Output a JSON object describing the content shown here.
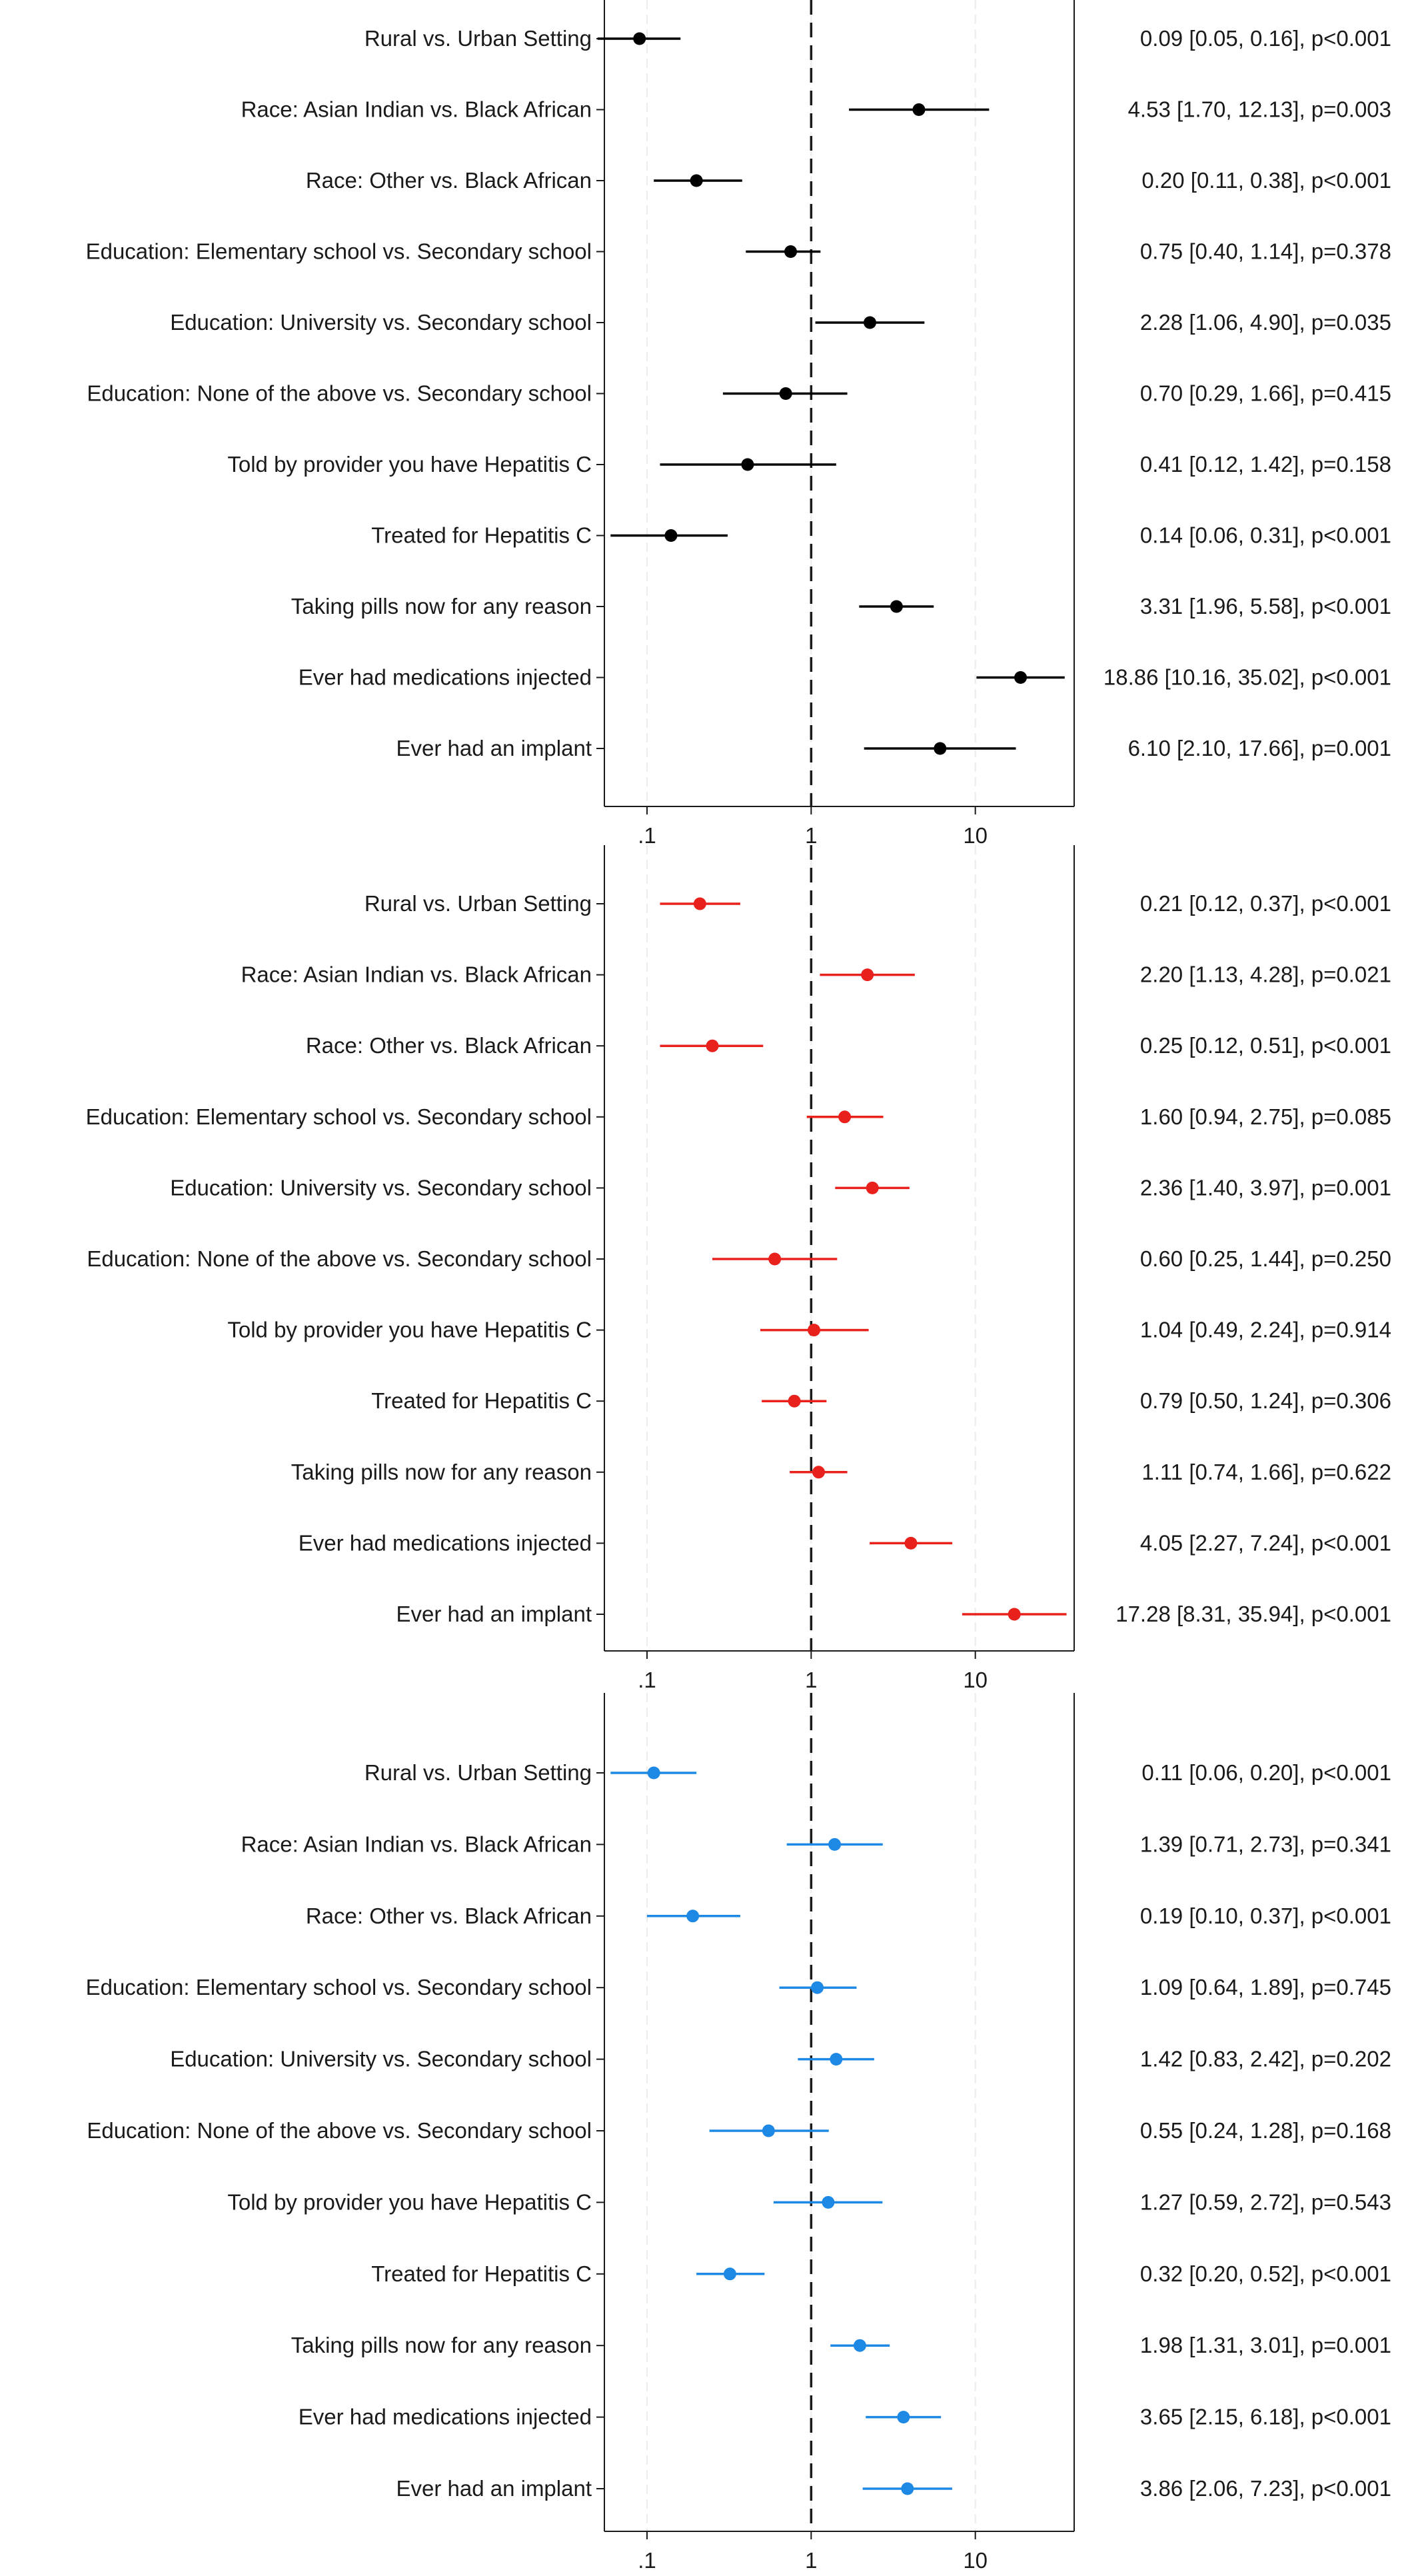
{
  "chart_data": [
    {
      "type": "forest",
      "x_scale": "log",
      "xlim": [
        0.055,
        40
      ],
      "reference_line": 1,
      "x_ticks": [
        {
          "value": 0.1,
          "label": ".1"
        },
        {
          "value": 1,
          "label": "1"
        },
        {
          "value": 10,
          "label": "10"
        }
      ],
      "grid": true,
      "marker_color": "#000000",
      "rows": [
        {
          "label": "Rural vs. Urban Setting",
          "or": 0.09,
          "lo": 0.05,
          "hi": 0.16,
          "text": "0.09 [0.05, 0.16], p<0.001"
        },
        {
          "label": "Race: Asian Indian vs. Black African",
          "or": 4.53,
          "lo": 1.7,
          "hi": 12.13,
          "text": "4.53 [1.70, 12.13], p=0.003"
        },
        {
          "label": "Race: Other vs. Black African",
          "or": 0.2,
          "lo": 0.11,
          "hi": 0.38,
          "text": "0.20 [0.11, 0.38], p<0.001"
        },
        {
          "label": "Education: Elementary school vs. Secondary school",
          "or": 0.75,
          "lo": 0.4,
          "hi": 1.14,
          "text": "0.75 [0.40, 1.14], p=0.378"
        },
        {
          "label": "Education: University vs. Secondary school",
          "or": 2.28,
          "lo": 1.06,
          "hi": 4.9,
          "text": "2.28 [1.06, 4.90], p=0.035"
        },
        {
          "label": "Education: None of the above vs. Secondary school",
          "or": 0.7,
          "lo": 0.29,
          "hi": 1.66,
          "text": "0.70 [0.29, 1.66], p=0.415"
        },
        {
          "label": "Told by provider you have Hepatitis C",
          "or": 0.41,
          "lo": 0.12,
          "hi": 1.42,
          "text": "0.41 [0.12, 1.42], p=0.158"
        },
        {
          "label": "Treated for Hepatitis C",
          "or": 0.14,
          "lo": 0.06,
          "hi": 0.31,
          "text": "0.14 [0.06, 0.31], p<0.001"
        },
        {
          "label": "Taking pills now for any reason",
          "or": 3.31,
          "lo": 1.96,
          "hi": 5.58,
          "text": "3.31 [1.96, 5.58], p<0.001"
        },
        {
          "label": "Ever had medications injected",
          "or": 18.86,
          "lo": 10.16,
          "hi": 35.02,
          "text": "18.86 [10.16, 35.02], p<0.001"
        },
        {
          "label": "Ever had an implant",
          "or": 6.1,
          "lo": 2.1,
          "hi": 17.66,
          "text": "6.10 [2.10, 17.66], p=0.001"
        }
      ]
    },
    {
      "type": "forest",
      "x_scale": "log",
      "xlim": [
        0.055,
        40
      ],
      "reference_line": 1,
      "x_ticks": [
        {
          "value": 0.1,
          "label": ".1"
        },
        {
          "value": 1,
          "label": "1"
        },
        {
          "value": 10,
          "label": "10"
        }
      ],
      "grid": true,
      "marker_color": "#e8211d",
      "rows": [
        {
          "label": "Rural vs. Urban Setting",
          "or": 0.21,
          "lo": 0.12,
          "hi": 0.37,
          "text": "0.21 [0.12, 0.37], p<0.001"
        },
        {
          "label": "Race: Asian Indian vs. Black African",
          "or": 2.2,
          "lo": 1.13,
          "hi": 4.28,
          "text": "2.20 [1.13, 4.28], p=0.021"
        },
        {
          "label": "Race: Other vs. Black African",
          "or": 0.25,
          "lo": 0.12,
          "hi": 0.51,
          "text": "0.25 [0.12, 0.51], p<0.001"
        },
        {
          "label": "Education: Elementary school vs. Secondary school",
          "or": 1.6,
          "lo": 0.94,
          "hi": 2.75,
          "text": "1.60 [0.94, 2.75], p=0.085"
        },
        {
          "label": "Education: University vs. Secondary school",
          "or": 2.36,
          "lo": 1.4,
          "hi": 3.97,
          "text": "2.36 [1.40, 3.97], p=0.001"
        },
        {
          "label": "Education: None of the above vs. Secondary school",
          "or": 0.6,
          "lo": 0.25,
          "hi": 1.44,
          "text": "0.60 [0.25, 1.44], p=0.250"
        },
        {
          "label": "Told by provider you have Hepatitis C",
          "or": 1.04,
          "lo": 0.49,
          "hi": 2.24,
          "text": "1.04 [0.49, 2.24], p=0.914"
        },
        {
          "label": "Treated for Hepatitis C",
          "or": 0.79,
          "lo": 0.5,
          "hi": 1.24,
          "text": "0.79 [0.50, 1.24], p=0.306"
        },
        {
          "label": "Taking pills now for any reason",
          "or": 1.11,
          "lo": 0.74,
          "hi": 1.66,
          "text": "1.11 [0.74, 1.66], p=0.622"
        },
        {
          "label": "Ever had medications injected",
          "or": 4.05,
          "lo": 2.27,
          "hi": 7.24,
          "text": "4.05 [2.27, 7.24], p<0.001"
        },
        {
          "label": "Ever had an implant",
          "or": 17.28,
          "lo": 8.31,
          "hi": 35.94,
          "text": "17.28 [8.31, 35.94], p<0.001"
        }
      ]
    },
    {
      "type": "forest",
      "x_scale": "log",
      "xlim": [
        0.055,
        40
      ],
      "reference_line": 1,
      "x_ticks": [
        {
          "value": 0.1,
          "label": ".1"
        },
        {
          "value": 1,
          "label": "1"
        },
        {
          "value": 10,
          "label": "10"
        }
      ],
      "grid": true,
      "marker_color": "#1e88e5",
      "rows": [
        {
          "label": "Rural vs. Urban Setting",
          "or": 0.11,
          "lo": 0.06,
          "hi": 0.2,
          "text": "0.11 [0.06, 0.20], p<0.001"
        },
        {
          "label": "Race: Asian Indian vs. Black African",
          "or": 1.39,
          "lo": 0.71,
          "hi": 2.73,
          "text": "1.39 [0.71, 2.73], p=0.341"
        },
        {
          "label": "Race: Other vs. Black African",
          "or": 0.19,
          "lo": 0.1,
          "hi": 0.37,
          "text": "0.19 [0.10, 0.37], p<0.001"
        },
        {
          "label": "Education: Elementary school vs. Secondary school",
          "or": 1.09,
          "lo": 0.64,
          "hi": 1.89,
          "text": "1.09 [0.64, 1.89], p=0.745"
        },
        {
          "label": "Education: University vs. Secondary school",
          "or": 1.42,
          "lo": 0.83,
          "hi": 2.42,
          "text": "1.42 [0.83, 2.42], p=0.202"
        },
        {
          "label": "Education: None of the above vs. Secondary school",
          "or": 0.55,
          "lo": 0.24,
          "hi": 1.28,
          "text": "0.55 [0.24, 1.28], p=0.168"
        },
        {
          "label": "Told by provider you have Hepatitis C",
          "or": 1.27,
          "lo": 0.59,
          "hi": 2.72,
          "text": "1.27 [0.59, 2.72], p=0.543"
        },
        {
          "label": "Treated for Hepatitis C",
          "or": 0.32,
          "lo": 0.2,
          "hi": 0.52,
          "text": "0.32 [0.20, 0.52], p<0.001"
        },
        {
          "label": "Taking pills now for any reason",
          "or": 1.98,
          "lo": 1.31,
          "hi": 3.01,
          "text": "1.98 [1.31, 3.01], p=0.001"
        },
        {
          "label": "Ever had medications injected",
          "or": 3.65,
          "lo": 2.15,
          "hi": 6.18,
          "text": "3.65 [2.15, 6.18], p<0.001"
        },
        {
          "label": "Ever had an implant",
          "or": 3.86,
          "lo": 2.06,
          "hi": 7.23,
          "text": "3.86 [2.06, 7.23], p<0.001"
        }
      ]
    }
  ]
}
